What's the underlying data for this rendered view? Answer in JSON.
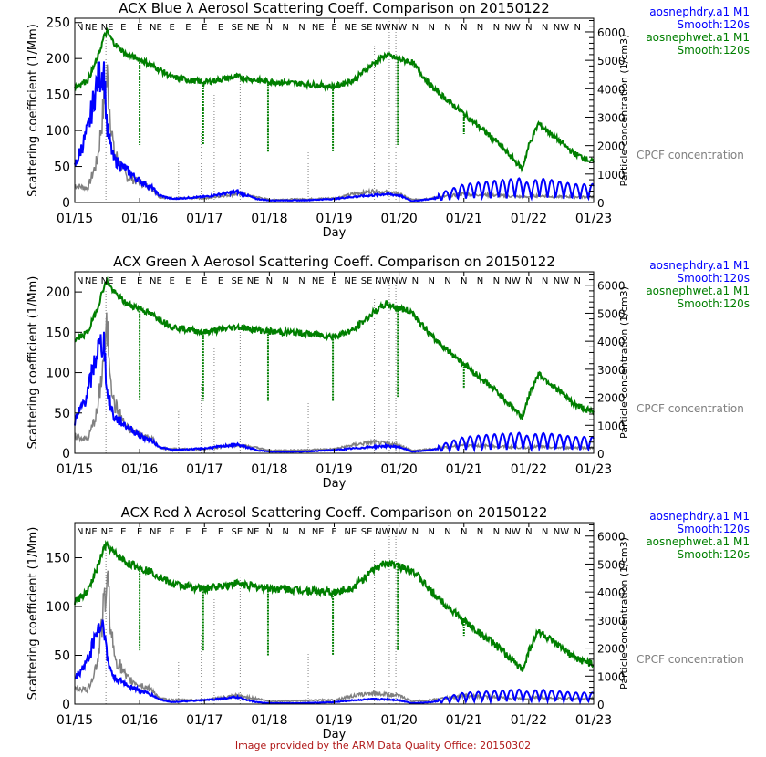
{
  "footer": "Image provided by the ARM Data Quality Office: 20150302",
  "colors": {
    "dry": "#0000ff",
    "wet": "#007f00",
    "cpcf": "#808080",
    "footer": "#b01818"
  },
  "chart_data": [
    {
      "type": "line",
      "title": "ACX Blue λ Aerosol Scattering Coeff. Comparison on 20150122",
      "xlabel": "Day",
      "ylabel": "Scattering coefficient (1/Mm)",
      "y2label": "Particle concentration (1/cm3)",
      "xticks": [
        "01/15",
        "01/16",
        "01/17",
        "01/18",
        "01/19",
        "01/20",
        "01/21",
        "01/22",
        "01/23"
      ],
      "xlim_days": [
        0,
        8
      ],
      "ylim": [
        0,
        256
      ],
      "yticks": [
        0,
        50,
        100,
        150,
        200,
        250
      ],
      "y2lim": [
        0,
        6480
      ],
      "y2ticks": [
        0,
        1000,
        2000,
        3000,
        4000,
        5000,
        6000
      ],
      "wind_dir": [
        "N",
        "NE",
        "NE",
        "E",
        "E",
        "NE",
        "E",
        "E",
        "E",
        "E",
        "SE",
        "NE",
        "N",
        "N",
        "N",
        "NE",
        "E",
        "NE",
        "SE",
        "NW",
        "NW",
        "N",
        "N",
        "N",
        "N",
        "N",
        "N",
        "NW",
        "N",
        "N",
        "NW",
        "N"
      ],
      "legend": [
        "aosnephdry.a1 M1",
        "Smooth:120s",
        "aosnephwet.a1 M1",
        "Smooth:120s"
      ],
      "legend_right": "CPCF concentration",
      "x": [
        0,
        0.2,
        0.35,
        0.45,
        0.5,
        0.6,
        0.8,
        1.0,
        1.2,
        1.3,
        1.5,
        2,
        2.5,
        2.8,
        3,
        3.5,
        4,
        4.3,
        4.6,
        4.8,
        5,
        5.2,
        5.5,
        6,
        6.5,
        6.9,
        7.0,
        7.15,
        7.4,
        7.7,
        8
      ],
      "series": [
        {
          "name": "aosnephwet.a1 M1",
          "axis": "left",
          "values": [
            161,
            170,
            200,
            230,
            237,
            222,
            205,
            199,
            190,
            185,
            174,
            167,
            175,
            170,
            168,
            165,
            161,
            170,
            193,
            205,
            199,
            195,
            161,
            123,
            85,
            47,
            79,
            110,
            91,
            68,
            56
          ]
        },
        {
          "name": "aosnephdry.a1 M1",
          "axis": "left",
          "values": [
            50,
            100,
            170,
            185,
            100,
            60,
            45,
            30,
            20,
            10,
            5,
            8,
            15,
            5,
            3,
            3,
            5,
            8,
            10,
            12,
            10,
            2,
            5,
            15,
            18,
            20,
            15,
            20,
            18,
            15,
            15
          ]
        },
        {
          "name": "CPCF concentration",
          "axis": "right",
          "values": [
            600,
            500,
            1500,
            3500,
            4400,
            1800,
            900,
            700,
            500,
            200,
            150,
            150,
            300,
            200,
            100,
            120,
            150,
            300,
            400,
            350,
            300,
            100,
            150,
            300,
            250,
            200,
            200,
            250,
            200,
            200,
            200
          ]
        }
      ],
      "wet_dropouts": {
        "days": [
          1.0,
          1.98,
          2.98,
          3.98,
          4.98,
          6.0
        ],
        "min": [
          80,
          80,
          70,
          70,
          80,
          95
        ]
      }
    },
    {
      "type": "line",
      "title": "ACX Green λ Aerosol Scattering Coeff. Comparison on 20150122",
      "xlabel": "Day",
      "ylabel": "Scattering coefficient (1/Mm)",
      "y2label": "Particle concentration (1/cm3)",
      "xticks": [
        "01/15",
        "01/16",
        "01/17",
        "01/18",
        "01/19",
        "01/20",
        "01/21",
        "01/22",
        "01/23"
      ],
      "xlim_days": [
        0,
        8
      ],
      "ylim": [
        0,
        225
      ],
      "yticks": [
        0,
        50,
        100,
        150,
        200
      ],
      "y2lim": [
        0,
        6480
      ],
      "y2ticks": [
        0,
        1000,
        2000,
        3000,
        4000,
        5000,
        6000
      ],
      "wind_dir": [
        "N",
        "NE",
        "NE",
        "E",
        "E",
        "NE",
        "E",
        "E",
        "E",
        "E",
        "SE",
        "NE",
        "N",
        "N",
        "N",
        "NE",
        "E",
        "NE",
        "SE",
        "NW",
        "NW",
        "N",
        "N",
        "N",
        "N",
        "N",
        "N",
        "NW",
        "N",
        "N",
        "NW",
        "N"
      ],
      "legend": [
        "aosnephdry.a1 M1",
        "Smooth:120s",
        "aosnephwet.a1 M1",
        "Smooth:120s"
      ],
      "legend_right": "CPCF concentration",
      "x": [
        0,
        0.2,
        0.35,
        0.45,
        0.5,
        0.6,
        0.8,
        1.0,
        1.2,
        1.3,
        1.5,
        2,
        2.5,
        2.8,
        3,
        3.5,
        4,
        4.3,
        4.6,
        4.8,
        5,
        5.2,
        5.5,
        6,
        6.5,
        6.9,
        7.0,
        7.15,
        7.4,
        7.7,
        8
      ],
      "series": [
        {
          "name": "aosnephwet.a1 M1",
          "axis": "left",
          "values": [
            140,
            150,
            180,
            207,
            213,
            200,
            185,
            180,
            171,
            167,
            157,
            150,
            157,
            153,
            151,
            149,
            145,
            153,
            174,
            185,
            180,
            175,
            145,
            111,
            77,
            45,
            71,
            99,
            82,
            61,
            50
          ]
        },
        {
          "name": "aosnephdry.a1 M1",
          "axis": "left",
          "values": [
            38,
            75,
            128,
            139,
            75,
            45,
            34,
            22,
            15,
            8,
            4,
            6,
            11,
            4,
            2,
            2,
            4,
            6,
            8,
            9,
            8,
            2,
            4,
            12,
            14,
            15,
            12,
            15,
            14,
            12,
            12
          ]
        },
        {
          "name": "CPCF concentration",
          "axis": "right",
          "values": [
            600,
            500,
            1500,
            3500,
            4400,
            1800,
            900,
            700,
            500,
            200,
            150,
            150,
            300,
            200,
            100,
            120,
            150,
            300,
            400,
            350,
            300,
            100,
            150,
            300,
            250,
            200,
            200,
            250,
            200,
            200,
            200
          ]
        }
      ],
      "wet_dropouts": {
        "days": [
          1.0,
          1.98,
          2.98,
          3.98,
          4.98,
          6.0
        ],
        "min": [
          65,
          65,
          65,
          65,
          70,
          80
        ]
      }
    },
    {
      "type": "line",
      "title": "ACX Red λ Aerosol Scattering Coeff. Comparison on 20150122",
      "xlabel": "Day",
      "ylabel": "Scattering coefficient (1/Mm)",
      "y2label": "Particle concentration (1/cm3)",
      "xticks": [
        "01/15",
        "01/16",
        "01/17",
        "01/18",
        "01/19",
        "01/20",
        "01/21",
        "01/22",
        "01/23"
      ],
      "xlim_days": [
        0,
        8
      ],
      "ylim": [
        0,
        186
      ],
      "yticks": [
        0,
        50,
        100,
        150
      ],
      "y2lim": [
        0,
        6480
      ],
      "y2ticks": [
        0,
        1000,
        2000,
        3000,
        4000,
        5000,
        6000
      ],
      "wind_dir": [
        "N",
        "NE",
        "NE",
        "E",
        "E",
        "NE",
        "E",
        "E",
        "E",
        "E",
        "SE",
        "NE",
        "N",
        "N",
        "N",
        "NE",
        "E",
        "NE",
        "SE",
        "NW",
        "NW",
        "N",
        "N",
        "N",
        "N",
        "N",
        "N",
        "NW",
        "N",
        "N",
        "NW",
        "N"
      ],
      "legend": [
        "aosnephdry.a1 M1",
        "Smooth:120s",
        "aosnephwet.a1 M1",
        "Smooth:120s"
      ],
      "legend_right": "CPCF concentration",
      "x": [
        0,
        0.2,
        0.35,
        0.45,
        0.5,
        0.6,
        0.8,
        1.0,
        1.2,
        1.3,
        1.5,
        2,
        2.5,
        2.8,
        3,
        3.5,
        4,
        4.3,
        4.6,
        4.8,
        5,
        5.2,
        5.5,
        6,
        6.5,
        6.9,
        7.0,
        7.15,
        7.4,
        7.7,
        8
      ],
      "series": [
        {
          "name": "aosnephwet.a1 M1",
          "axis": "left",
          "values": [
            105,
            115,
            140,
            160,
            162,
            155,
            145,
            140,
            135,
            131,
            123,
            118,
            124,
            120,
            119,
            117,
            114,
            120,
            137,
            145,
            141,
            138,
            115,
            85,
            60,
            35,
            55,
            75,
            62,
            48,
            40
          ]
        },
        {
          "name": "aosnephdry.a1 M1",
          "axis": "left",
          "values": [
            25,
            45,
            77,
            83,
            45,
            27,
            20,
            14,
            9,
            5,
            2,
            4,
            7,
            2,
            1,
            1,
            2,
            4,
            5,
            5,
            4,
            1,
            2,
            7,
            8,
            9,
            7,
            9,
            8,
            7,
            7
          ]
        },
        {
          "name": "CPCF concentration",
          "axis": "right",
          "values": [
            600,
            500,
            1500,
            3500,
            4400,
            1800,
            900,
            700,
            500,
            200,
            150,
            150,
            300,
            200,
            100,
            120,
            150,
            300,
            400,
            350,
            300,
            100,
            150,
            300,
            250,
            200,
            200,
            250,
            200,
            200,
            200
          ]
        }
      ],
      "wet_dropouts": {
        "days": [
          1.0,
          1.98,
          2.98,
          3.98,
          4.98,
          6.0
        ],
        "min": [
          55,
          55,
          50,
          50,
          55,
          70
        ]
      }
    }
  ]
}
